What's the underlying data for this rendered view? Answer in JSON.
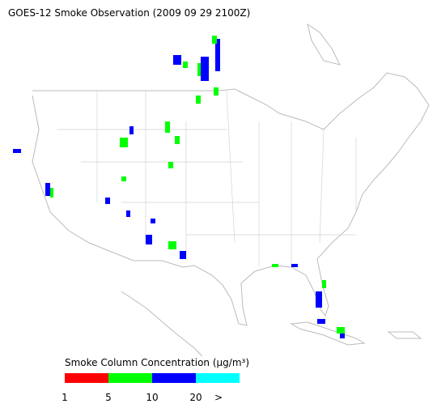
{
  "header": {
    "title": "GOES-12 Smoke Observation (2009 09 29  2100Z)"
  },
  "legend": {
    "title": "Smoke Column Concentration (μg/m³)",
    "colors": [
      "#ff0000",
      "#00ff00",
      "#0000ff",
      "#00ffff"
    ],
    "labels": [
      "1",
      "5",
      "10",
      "20",
      ">"
    ]
  }
}
